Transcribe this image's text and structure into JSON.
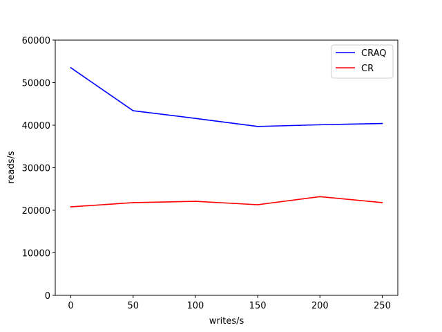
{
  "chart_data": {
    "type": "line",
    "title": "",
    "xlabel": "writes/s",
    "ylabel": "reads/s",
    "xlim": [
      -12.5,
      262.5
    ],
    "ylim": [
      0,
      60000
    ],
    "xticks": [
      0,
      50,
      100,
      150,
      200,
      250
    ],
    "xtick_labels": [
      "0",
      "50",
      "100",
      "150",
      "200",
      "250"
    ],
    "yticks": [
      0,
      10000,
      20000,
      30000,
      40000,
      50000,
      60000
    ],
    "ytick_labels": [
      "0",
      "10000",
      "20000",
      "30000",
      "40000",
      "50000",
      "60000"
    ],
    "grid": false,
    "legend": "top-right",
    "x": [
      0,
      50,
      100,
      150,
      200,
      250
    ],
    "series": [
      {
        "name": "CRAQ",
        "color": "#0000ff",
        "values": [
          53500,
          43400,
          41600,
          39700,
          40100,
          40400
        ]
      },
      {
        "name": "CR",
        "color": "#ff0000",
        "values": [
          20800,
          21800,
          22100,
          21300,
          23200,
          21800
        ]
      }
    ]
  }
}
